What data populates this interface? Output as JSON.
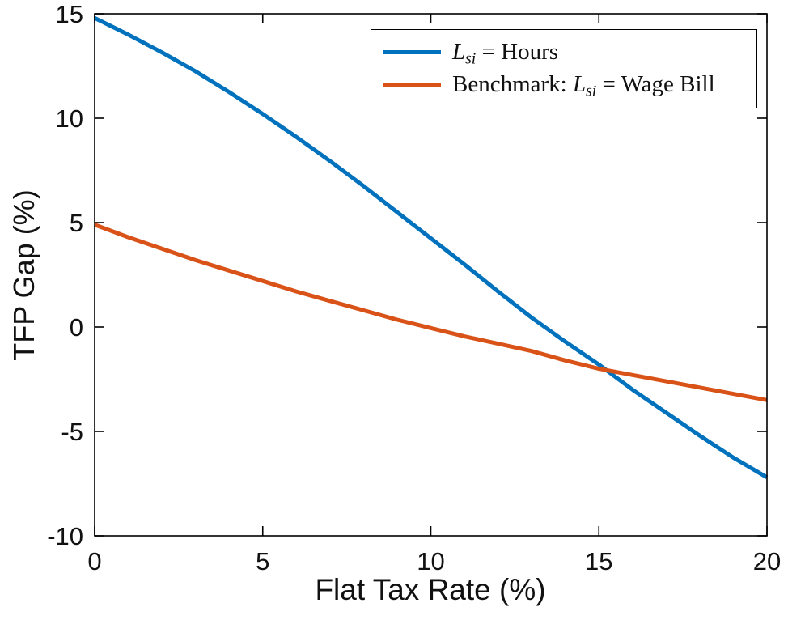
{
  "figure": {
    "background": "#ffffff",
    "axes_color": "#000000",
    "text_color": "#111111"
  },
  "chart_data": {
    "type": "line",
    "title": "",
    "xlabel": "Flat Tax Rate (%)",
    "ylabel": "TFP Gap (%)",
    "xlim": [
      0,
      20
    ],
    "ylim": [
      -10,
      15
    ],
    "xticks": [
      0,
      5,
      10,
      15,
      20
    ],
    "yticks": [
      -10,
      -5,
      0,
      5,
      10,
      15
    ],
    "grid": false,
    "legend_position": "north",
    "x": [
      0,
      1,
      2,
      3,
      4,
      5,
      6,
      7,
      8,
      9,
      10,
      11,
      12,
      13,
      14,
      15,
      16,
      17,
      18,
      19,
      20
    ],
    "series": [
      {
        "name": "L_si = Hours",
        "color": "#0072BD",
        "values": [
          14.8,
          14.0,
          13.15,
          12.25,
          11.25,
          10.2,
          9.1,
          7.95,
          6.75,
          5.5,
          4.25,
          3.0,
          1.7,
          0.45,
          -0.7,
          -1.8,
          -3.0,
          -4.1,
          -5.2,
          -6.25,
          -7.2
        ]
      },
      {
        "name": "Benchmark: L_si = Wage Bill",
        "color": "#D95319",
        "values": [
          4.9,
          4.3,
          3.75,
          3.2,
          2.7,
          2.2,
          1.7,
          1.25,
          0.8,
          0.35,
          -0.05,
          -0.45,
          -0.8,
          -1.15,
          -1.6,
          -2.0,
          -2.3,
          -2.6,
          -2.9,
          -3.2,
          -3.5
        ]
      }
    ]
  },
  "legend": {
    "entries": [
      {
        "prefix": "",
        "symbol": "L",
        "subscript": "si",
        "suffix": " = Hours"
      },
      {
        "prefix": "Benchmark: ",
        "symbol": "L",
        "subscript": "si",
        "suffix": " = Wage Bill"
      }
    ]
  }
}
